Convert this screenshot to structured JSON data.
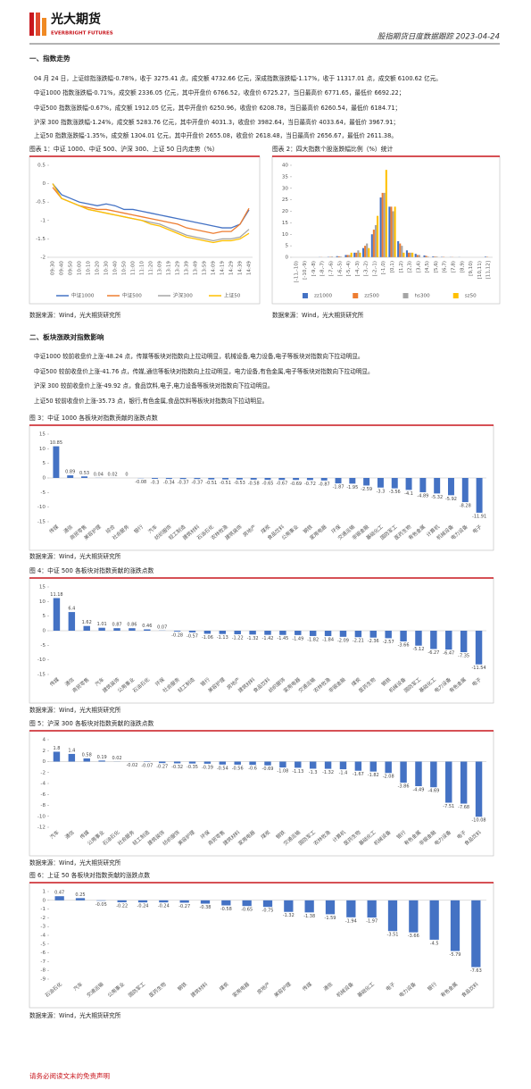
{
  "header": {
    "logo_cn": "光大期货",
    "logo_en": "EVERBRIGHT FUTURES",
    "report_title": "股指期货日度数据跟踪 2023-04-24"
  },
  "sections": [
    {
      "title": "一、指数走势",
      "paragraphs": [
        "04 月 24 日，上证综指涨跌幅-0.78%，收于 3275.41 点，成交额 4732.66 亿元，深成指数涨跌幅-1.17%，收于 11317.01 点，成交额 6100.62 亿元。",
        "中证1000 指数涨跌幅-0.71%，成交额 2336.05 亿元，其中开盘价 6766.52，收盘价 6725.27，当日最高价 6771.65，最低价 6692.22；",
        "中证500 指数涨跌幅-0.67%，成交额 1912.05 亿元，其中开盘价 6250.96，收盘价 6208.78，当日最高价 6260.54，最低价 6184.71；",
        "沪深 300 指数涨跌幅-1.24%，成交额 5283.76 亿元，其中开盘价 4031.3，收盘价 3982.64，当日最高价 4033.64，最低价 3967.91；",
        "上证50 指数涨跌幅-1.35%，成交额 1304.01 亿元，其中开盘价 2655.08，收盘价 2618.48，当日最高价 2656.67，最低价 2611.38。"
      ]
    },
    {
      "title": "二、板块涨跌对指数影响",
      "paragraphs": [
        "中证1000 较前收盘价上涨-48.24 点，传媒等板块对指数向上拉动明显，机械设备,电力设备,电子等板块对指数向下拉动明显。",
        "中证500 较前收盘价上涨-41.76 点，传媒,通信等板块对指数向上拉动明显，电力设备,有色金属,电子等板块对指数向下拉动明显。",
        "沪深 300 较前收盘价上涨-49.92 点，食品饮料,电子,电力设备等板块对指数向下拉动明显。",
        "上证50 较前收盘价上涨-35.73 点，银行,有色金属,食品饮料等板块对指数向下拉动明显。"
      ]
    }
  ],
  "sources": [
    "数据来源：Wind，光大期货研究所",
    "数据来源：Wind，光大期货研究所",
    "数据来源：Wind，光大期货研究所",
    "数据来源：Wind，光大期货研究所",
    "数据来源：Wind，光大期货研究所",
    "数据来源：Wind，光大期货研究所"
  ],
  "chart_data": [
    {
      "type": "line",
      "title": "图表 1：中证 1000、中证 500、沪深 300、上证 50 日内走势（%）",
      "categories": [
        "09:30",
        "09:40",
        "09:50",
        "10:00",
        "10:10",
        "10:20",
        "10:30",
        "10:40",
        "10:50",
        "11:00",
        "11:10",
        "11:20",
        "13:09",
        "13:19",
        "13:29",
        "13:39",
        "13:49",
        "13:59",
        "14:09",
        "14:19",
        "14:29",
        "14:39",
        "14:49"
      ],
      "series": [
        {
          "name": "中证1000",
          "color": "#4472c4",
          "values": [
            0,
            -0.3,
            -0.4,
            -0.5,
            -0.55,
            -0.6,
            -0.55,
            -0.6,
            -0.7,
            -0.7,
            -0.75,
            -0.8,
            -0.85,
            -0.9,
            -0.95,
            -1.0,
            -1.05,
            -1.1,
            -1.15,
            -1.2,
            -1.2,
            -1.1,
            -0.71
          ]
        },
        {
          "name": "中证500",
          "color": "#ed7d31",
          "values": [
            -0.1,
            -0.4,
            -0.5,
            -0.6,
            -0.65,
            -0.7,
            -0.7,
            -0.75,
            -0.8,
            -0.85,
            -0.9,
            -0.95,
            -1.0,
            -1.05,
            -1.1,
            -1.2,
            -1.25,
            -1.3,
            -1.35,
            -1.3,
            -1.3,
            -1.1,
            -0.67
          ]
        },
        {
          "name": "沪深300",
          "color": "#a5a5a5",
          "values": [
            0,
            -0.4,
            -0.5,
            -0.6,
            -0.7,
            -0.75,
            -0.8,
            -0.85,
            -0.9,
            -0.95,
            -1.0,
            -1.05,
            -1.1,
            -1.2,
            -1.3,
            -1.4,
            -1.45,
            -1.5,
            -1.55,
            -1.5,
            -1.5,
            -1.45,
            -1.24
          ]
        },
        {
          "name": "上证50",
          "color": "#ffc000",
          "values": [
            0,
            -0.4,
            -0.5,
            -0.6,
            -0.7,
            -0.75,
            -0.8,
            -0.85,
            -0.9,
            -0.95,
            -1.0,
            -1.1,
            -1.15,
            -1.25,
            -1.35,
            -1.45,
            -1.5,
            -1.55,
            -1.6,
            -1.55,
            -1.55,
            -1.5,
            -1.35
          ]
        }
      ],
      "ylim": [
        -2,
        0.5
      ],
      "yticks": [
        0.5,
        0,
        -0.5,
        -1,
        -1.5,
        -2
      ],
      "legend": "bottom"
    },
    {
      "type": "bar",
      "title": "图表 2：四大指数个股涨跌幅比例（%）统计",
      "categories": [
        "[-11,-10)",
        "[-10,-9)",
        "[-9,-8)",
        "[-8,-7)",
        "[-7,-6)",
        "[-6,-5)",
        "[-5,-4)",
        "[-4,-3)",
        "[-3,-2)",
        "[-2,-1)",
        "[-1,0)",
        "[0,1)",
        "[1,2)",
        "[2,3)",
        "[3,4)",
        "[4,5)",
        "[5,6)",
        "[6,7)",
        "[7,8)",
        "[8,9)",
        "[9,10)",
        "[10,11)",
        "[11,12]"
      ],
      "series": [
        {
          "name": "zz1000",
          "color": "#4472c4",
          "values": [
            0,
            0,
            0,
            0.1,
            0.2,
            0.5,
            1,
            2,
            4,
            10,
            26,
            22,
            7,
            3,
            1.5,
            0.8,
            0.4,
            0.2,
            0.1,
            0.1,
            0,
            0,
            0.3
          ]
        },
        {
          "name": "zz500",
          "color": "#ed7d31",
          "values": [
            0,
            0,
            0,
            0.1,
            0.2,
            0.4,
            1,
            2,
            5,
            12,
            28,
            22,
            6,
            2,
            1,
            0.6,
            0.3,
            0.2,
            0.1,
            0,
            0,
            0,
            0.2
          ]
        },
        {
          "name": "hs300",
          "color": "#a5a5a5",
          "values": [
            0,
            0,
            0,
            0,
            0.3,
            0.3,
            1,
            3,
            6,
            14,
            28,
            20,
            5,
            2,
            1,
            0.3,
            0.3,
            0,
            0,
            0,
            0,
            0,
            0
          ]
        },
        {
          "name": "sz50",
          "color": "#ffc000",
          "values": [
            0,
            0,
            0,
            0,
            0,
            0,
            2,
            2,
            4,
            18,
            38,
            22,
            2,
            2,
            0,
            0,
            0,
            0,
            0,
            0,
            0,
            0,
            0
          ]
        }
      ],
      "ylim": [
        0,
        40
      ],
      "yticks": [
        0,
        5,
        10,
        15,
        20,
        25,
        30,
        35,
        40
      ],
      "legend": "bottom"
    },
    {
      "type": "bar",
      "title": "图 3：中证 1000 各板块对指数贡献的涨跌点数",
      "color": "#4472c4",
      "categories": [
        "传媒",
        "通信",
        "商贸零售",
        "美容护理",
        "综合",
        "社会服务",
        "银行",
        "汽车",
        "纺织服饰",
        "轻工制造",
        "建筑材料",
        "石油石化",
        "农林牧渔",
        "建筑装饰",
        "房地产",
        "煤炭",
        "食品饮料",
        "公用事业",
        "钢铁",
        "家用电器",
        "环保",
        "交通运输",
        "非银金融",
        "基础化工",
        "国防军工",
        "医药生物",
        "有色金属",
        "计算机",
        "机械设备",
        "电力设备",
        "电子"
      ],
      "values": [
        10.85,
        0.89,
        0.53,
        0.04,
        0.02,
        0,
        -0.08,
        -0.3,
        -0.34,
        -0.37,
        -0.37,
        -0.51,
        -0.51,
        -0.53,
        -0.58,
        -0.65,
        -0.67,
        -0.69,
        -0.72,
        -0.87,
        -1.87,
        -1.95,
        -2.59,
        -3.3,
        -3.56,
        -4.1,
        -4.89,
        -5.32,
        -5.92,
        -8.28,
        -11.91
      ],
      "ylim": [
        -15,
        15
      ],
      "yticks": [
        15,
        10,
        5,
        0,
        -5,
        -10,
        -15
      ]
    },
    {
      "type": "bar",
      "title": "图 4：中证 500 各板块对指数贡献的涨跌点数",
      "color": "#4472c4",
      "categories": [
        "传媒",
        "通信",
        "商贸零售",
        "汽车",
        "建筑装饰",
        "公用事业",
        "石油石化",
        "环保",
        "社会服务",
        "轻工制造",
        "银行",
        "美容护理",
        "房地产",
        "建筑材料",
        "食品饮料",
        "纺织服饰",
        "家用电器",
        "交通运输",
        "农林牧渔",
        "非银金融",
        "煤炭",
        "医药生物",
        "钢铁",
        "机械设备",
        "国防军工",
        "基础化工",
        "电力设备",
        "有色金属",
        "电子"
      ],
      "values": [
        11.18,
        6.4,
        1.62,
        1.01,
        0.87,
        0.86,
        0.46,
        0.07,
        -0.28,
        -0.57,
        -1.06,
        -1.13,
        -1.22,
        -1.32,
        -1.42,
        -1.45,
        -1.49,
        -1.82,
        -1.84,
        -2.09,
        -2.21,
        -2.36,
        -2.57,
        -3.66,
        -5.12,
        -6.27,
        -6.47,
        -7.35,
        -11.54
      ],
      "ylim": [
        -15,
        15
      ],
      "yticks": [
        15,
        10,
        5,
        0,
        -5,
        -10,
        -15
      ]
    },
    {
      "type": "bar",
      "title": "图 5：沪深 300 各板块对指数贡献的涨跌点数",
      "color": "#4472c4",
      "categories": [
        "汽车",
        "通信",
        "传媒",
        "公用事业",
        "石油石化",
        "社会服务",
        "轻工制造",
        "建筑装饰",
        "纺织服饰",
        "美容护理",
        "环保",
        "商贸零售",
        "建筑材料",
        "家用电器",
        "煤炭",
        "钢铁",
        "交通运输",
        "国防军工",
        "农林牧渔",
        "计算机",
        "医药生物",
        "基础化工",
        "机械设备",
        "银行",
        "有色金属",
        "非银金融",
        "电力设备",
        "电子",
        "食品饮料"
      ],
      "values": [
        1.8,
        1.4,
        0.58,
        0.19,
        0.02,
        -0.02,
        -0.07,
        -0.27,
        -0.32,
        -0.35,
        -0.39,
        -0.54,
        -0.56,
        -0.6,
        -0.69,
        -1.08,
        -1.13,
        -1.3,
        -1.32,
        -1.4,
        -1.67,
        -1.82,
        -2.08,
        -3.86,
        -4.49,
        -4.69,
        -7.51,
        -7.68,
        -10.08
      ],
      "ylim": [
        -12,
        4
      ],
      "yticks": [
        4,
        2,
        0,
        -2,
        -4,
        -6,
        -8,
        -10,
        -12
      ]
    },
    {
      "type": "bar",
      "title": "图 6：上证 50 各板块对指数贡献的涨跌点数",
      "color": "#4472c4",
      "categories": [
        "石油石化",
        "汽车",
        "交通运输",
        "公用事业",
        "国防军工",
        "医药生物",
        "钢铁",
        "建筑材料",
        "煤炭",
        "家用电器",
        "房地产",
        "美容护理",
        "传媒",
        "通信",
        "机械设备",
        "基础化工",
        "电子",
        "电力设备",
        "银行",
        "有色金属",
        "食品饮料"
      ],
      "values": [
        0.47,
        0.25,
        -0.05,
        -0.22,
        -0.24,
        -0.24,
        -0.27,
        -0.38,
        -0.58,
        -0.65,
        -0.75,
        -1.32,
        -1.38,
        -1.59,
        -1.94,
        -1.97,
        -3.51,
        -3.66,
        -4.5,
        -5.79,
        -7.63
      ],
      "ylim": [
        -9,
        1
      ],
      "yticks": [
        1,
        0,
        -1,
        -2,
        -3,
        -4,
        -5,
        -6,
        -7,
        -8,
        -9
      ]
    }
  ],
  "footer": "请务必阅读文末的免责声明"
}
